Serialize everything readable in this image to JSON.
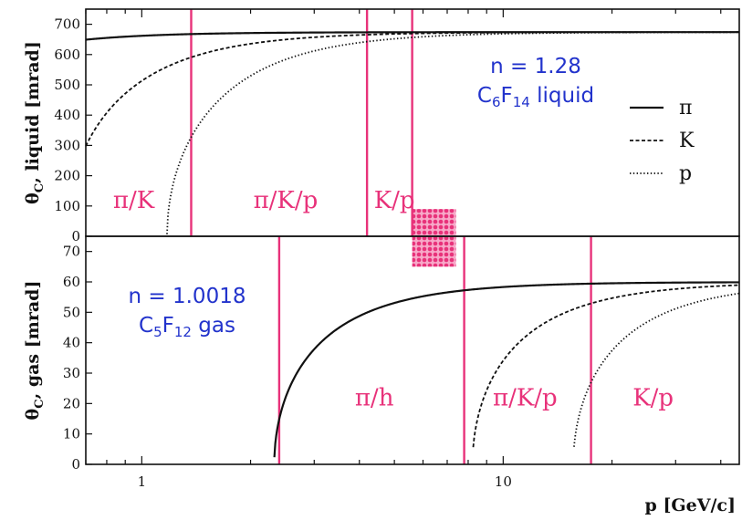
{
  "chart_data": [
    {
      "type": "line",
      "panel": "top",
      "ylabel_parts": {
        "main": "θ",
        "sub": "C",
        "rest": ", liquid [mrad]"
      },
      "ylim": [
        0,
        750
      ],
      "yticks": [
        0,
        100,
        200,
        300,
        400,
        500,
        600,
        700
      ],
      "xscale": "log",
      "xlim": [
        0.7,
        45
      ],
      "refractive_index": 1.28,
      "info_lines": [
        {
          "text": "n = 1.28"
        },
        {
          "parts": [
            {
              "t": "C"
            },
            {
              "t": "6",
              "sub": true
            },
            {
              "t": "F"
            },
            {
              "t": "14",
              "sub": true
            },
            {
              "t": " liquid"
            }
          ]
        }
      ],
      "series": [
        {
          "name": "π",
          "mass": 0.1396,
          "style": "solid"
        },
        {
          "name": "K",
          "mass": 0.4937,
          "style": "dashed"
        },
        {
          "name": "p",
          "mass": 0.9383,
          "style": "dotted"
        }
      ],
      "boundaries": [
        1.37,
        4.2,
        5.6
      ],
      "regions": [
        {
          "label": "π/K",
          "x": 0.95,
          "y": 120
        },
        {
          "label": "π/K/p",
          "x": 2.5,
          "y": 120
        },
        {
          "label": "K/p",
          "x": 5.0,
          "y": 120
        }
      ],
      "legend_position": "right"
    },
    {
      "type": "line",
      "panel": "bottom",
      "ylabel_parts": {
        "main": "θ",
        "sub": "C",
        "rest": ", gas [mrad]"
      },
      "ylim": [
        0,
        75
      ],
      "yticks": [
        0,
        10,
        20,
        30,
        40,
        50,
        60,
        70
      ],
      "xscale": "log",
      "xlim": [
        0.7,
        45
      ],
      "xticks": [
        1,
        10
      ],
      "xlabel": "p [GeV/c]",
      "refractive_index": 1.0018,
      "info_lines": [
        {
          "text": "n = 1.0018"
        },
        {
          "parts": [
            {
              "t": "C"
            },
            {
              "t": "5",
              "sub": true
            },
            {
              "t": "F"
            },
            {
              "t": "12",
              "sub": true
            },
            {
              "t": " gas"
            }
          ]
        }
      ],
      "series": [
        {
          "name": "π",
          "mass": 0.1396,
          "style": "solid"
        },
        {
          "name": "K",
          "mass": 0.4937,
          "style": "dashed"
        },
        {
          "name": "p",
          "mass": 0.9383,
          "style": "dotted"
        }
      ],
      "boundaries": [
        2.4,
        7.8,
        17.5
      ],
      "regions": [
        {
          "label": "π/h",
          "x": 4.4,
          "y": 22
        },
        {
          "label": "π/K/p",
          "x": 11.5,
          "y": 22
        },
        {
          "label": "K/p",
          "x": 26,
          "y": 22
        }
      ],
      "hatch_box": {
        "x": [
          5.6,
          7.4
        ],
        "y_top_mrad_liquid": 90,
        "y_bottom_mrad_gas": 65
      }
    }
  ],
  "colors": {
    "boundary": "#e8327a",
    "region_text": "#e8327a",
    "info_text": "#2233cc",
    "curve": "#111111"
  }
}
